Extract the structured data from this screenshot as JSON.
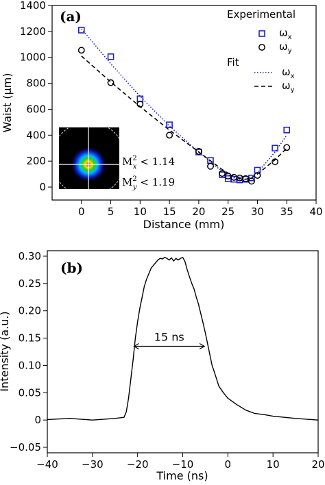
{
  "chart_data": [
    {
      "panel": "(a)",
      "type": "scatter",
      "xlabel": "Distance (mm)",
      "ylabel": "Waist (μm)",
      "xlim": [
        -5,
        40
      ],
      "ylim": [
        -100,
        1400
      ],
      "xticks": [
        "0",
        "5",
        "10",
        "15",
        "20",
        "25",
        "30",
        "35",
        "40"
      ],
      "yticks": [
        "0",
        "200",
        "400",
        "600",
        "800",
        "1000",
        "1200",
        "1400"
      ],
      "legend": {
        "placement": "top-right",
        "group1_title": "Experimental",
        "group2_title": "Fit",
        "wx_label": "ω",
        "wx_sub": "x",
        "wy_label": "ω",
        "wy_sub": "y"
      },
      "series": [
        {
          "name": "ωx",
          "kind": "points",
          "color": "#1f1fcc",
          "x": [
            0,
            5,
            10,
            15,
            20,
            22,
            24,
            25,
            26,
            27,
            28,
            29,
            30,
            33,
            35
          ],
          "y": [
            1210,
            1005,
            680,
            480,
            270,
            205,
            95,
            65,
            60,
            55,
            60,
            70,
            130,
            300,
            440
          ]
        },
        {
          "name": "ωy",
          "kind": "points",
          "color": "#000000",
          "x": [
            0,
            5,
            10,
            15,
            20,
            22,
            24,
            25,
            26,
            27,
            28,
            29,
            30,
            33,
            35
          ],
          "y": [
            1055,
            805,
            640,
            400,
            275,
            160,
            105,
            85,
            75,
            70,
            65,
            45,
            90,
            195,
            305
          ]
        },
        {
          "name": "ωx fit",
          "kind": "line",
          "color": "#1f1fcc",
          "dash": "dotted",
          "x": [
            0,
            5,
            10,
            15,
            20,
            24,
            26,
            27,
            28,
            29,
            30,
            33,
            35
          ],
          "y": [
            1220,
            950,
            700,
            470,
            270,
            120,
            70,
            60,
            60,
            75,
            110,
            270,
            400
          ]
        },
        {
          "name": "ωy fit",
          "kind": "line",
          "color": "#000000",
          "dash": "dashed",
          "x": [
            0,
            5,
            10,
            15,
            20,
            24,
            26,
            27,
            28,
            29,
            30,
            33,
            35
          ],
          "y": [
            1010,
            810,
            620,
            440,
            270,
            135,
            80,
            65,
            60,
            70,
            100,
            210,
            300
          ]
        }
      ],
      "inset": {
        "mx_label": "M",
        "mx_sub": "x",
        "mx_value": "< 1.14",
        "my_label": "M",
        "my_sub": "y",
        "my_value": "< 1.19",
        "sup": "2"
      }
    },
    {
      "panel": "(b)",
      "type": "line",
      "xlabel": "Time (ns)",
      "ylabel": "Intensity (a.u.)",
      "xlim": [
        -40,
        20
      ],
      "ylim": [
        -0.06,
        0.31
      ],
      "xticks": [
        "−40",
        "−30",
        "−20",
        "−10",
        "0",
        "10",
        "20"
      ],
      "yticks": [
        "−0.05",
        "0",
        "0.05",
        "0.10",
        "0.15",
        "0.20",
        "0.25",
        "0.30"
      ],
      "annotation": "15 ns",
      "annotation_x": [
        -20.8,
        -5.2
      ],
      "annotation_y": 0.135,
      "series": [
        {
          "color": "#000000",
          "x": [
            -40,
            -35,
            -30,
            -25,
            -23,
            -22.5,
            -22,
            -21.5,
            -21,
            -20.5,
            -20,
            -19.5,
            -19,
            -18.5,
            -18,
            -17.5,
            -17,
            -16.5,
            -16,
            -15.5,
            -15,
            -14.5,
            -14,
            -13.5,
            -13,
            -12.5,
            -12,
            -11.5,
            -11,
            -10.5,
            -10,
            -9.5,
            -9,
            -8.5,
            -8,
            -7.5,
            -7,
            -6.5,
            -6,
            -5.5,
            -5,
            -4.5,
            -4,
            -3.5,
            -3,
            -2.5,
            -2,
            -1,
            0,
            1,
            2,
            3,
            4,
            6,
            8,
            10,
            15,
            20
          ],
          "y": [
            0.001,
            0.003,
            0.0,
            0.003,
            0.005,
            0.015,
            0.04,
            0.075,
            0.11,
            0.15,
            0.18,
            0.205,
            0.225,
            0.245,
            0.258,
            0.268,
            0.278,
            0.283,
            0.288,
            0.293,
            0.296,
            0.295,
            0.298,
            0.296,
            0.293,
            0.297,
            0.291,
            0.296,
            0.293,
            0.296,
            0.298,
            0.29,
            0.275,
            0.262,
            0.25,
            0.24,
            0.225,
            0.212,
            0.195,
            0.178,
            0.16,
            0.14,
            0.12,
            0.1,
            0.088,
            0.075,
            0.062,
            0.05,
            0.04,
            0.034,
            0.028,
            0.023,
            0.018,
            0.012,
            0.01,
            0.007,
            0.003,
            0.0
          ]
        }
      ]
    }
  ]
}
